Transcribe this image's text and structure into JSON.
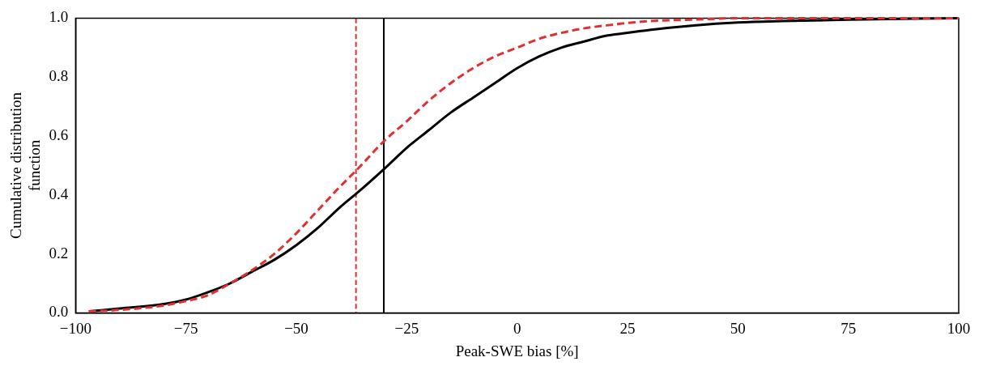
{
  "chart_data": {
    "type": "line",
    "xlabel": "Peak-SWE bias [%]",
    "ylabel": "Cumulative distribution\nfunction",
    "xlim": [
      -100,
      100
    ],
    "ylim": [
      0,
      1
    ],
    "xticks": [
      {
        "value": -100,
        "label": "−100"
      },
      {
        "value": -75,
        "label": "−75"
      },
      {
        "value": -50,
        "label": "−50"
      },
      {
        "value": -25,
        "label": "−25"
      },
      0,
      25,
      50,
      75,
      100
    ],
    "yticks": [
      {
        "value": 0,
        "label": "0.0"
      },
      {
        "value": 0.2,
        "label": "0.2"
      },
      {
        "value": 0.4,
        "label": "0.4"
      },
      {
        "value": 0.6,
        "label": "0.6"
      },
      {
        "value": 0.8,
        "label": "0.8"
      },
      {
        "value": 1,
        "label": "1.0"
      }
    ],
    "grid": false,
    "legend": false,
    "marker": "none",
    "series": [
      {
        "color": "#000000",
        "line_style": "solid",
        "x": [
          -97,
          -90,
          -80,
          -75,
          -70,
          -65,
          -60,
          -55,
          -50,
          -45,
          -40,
          -36,
          -30,
          -25,
          -20,
          -15,
          -10,
          -5,
          0,
          5,
          10,
          15,
          20,
          25,
          30,
          40,
          50,
          60,
          75,
          100
        ],
        "values": [
          0.005,
          0.015,
          0.03,
          0.045,
          0.07,
          0.1,
          0.14,
          0.18,
          0.23,
          0.29,
          0.36,
          0.41,
          0.49,
          0.56,
          0.62,
          0.68,
          0.73,
          0.78,
          0.83,
          0.87,
          0.9,
          0.92,
          0.94,
          0.95,
          0.96,
          0.975,
          0.985,
          0.99,
          0.995,
          1.0
        ]
      },
      {
        "color": "#e03030",
        "line_style": "dashed",
        "x": [
          -97,
          -90,
          -80,
          -75,
          -70,
          -65,
          -60,
          -55,
          -50,
          -45,
          -40,
          -36,
          -30,
          -25,
          -20,
          -15,
          -10,
          -5,
          0,
          5,
          10,
          15,
          20,
          30,
          40,
          50,
          100
        ],
        "values": [
          0.005,
          0.01,
          0.025,
          0.04,
          0.06,
          0.1,
          0.145,
          0.2,
          0.27,
          0.35,
          0.43,
          0.49,
          0.585,
          0.65,
          0.72,
          0.78,
          0.83,
          0.87,
          0.9,
          0.93,
          0.95,
          0.965,
          0.975,
          0.99,
          0.995,
          1.0,
          1.0
        ]
      }
    ],
    "ref_lines": [
      {
        "axis": "x",
        "value": -36.5,
        "color": "#e03030",
        "line_style": "dashed"
      },
      {
        "axis": "x",
        "value": -30.2,
        "color": "#000000",
        "line_style": "solid"
      }
    ]
  }
}
